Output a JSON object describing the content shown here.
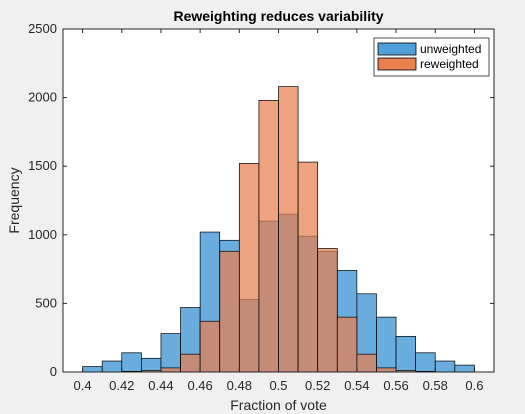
{
  "chart_data": {
    "type": "bar",
    "title": "Reweighting reduces variability",
    "xlabel": "Fraction of vote",
    "ylabel": "Frequency",
    "xlim": [
      0.39,
      0.61
    ],
    "ylim": [
      0,
      2500
    ],
    "xticks": [
      "0.4",
      "0.42",
      "0.44",
      "0.46",
      "0.48",
      "0.5",
      "0.52",
      "0.54",
      "0.56",
      "0.58",
      "0.6"
    ],
    "yticks": [
      "0",
      "500",
      "1000",
      "1500",
      "2000",
      "2500"
    ],
    "bin_width": 0.01,
    "grid": false,
    "legend_position": "top-right",
    "series": [
      {
        "name": "unweighted",
        "color": "#4f9fd8",
        "opacity": 0.85,
        "bins": [
          {
            "x": 0.4,
            "value": 40
          },
          {
            "x": 0.41,
            "value": 80
          },
          {
            "x": 0.42,
            "value": 140
          },
          {
            "x": 0.43,
            "value": 100
          },
          {
            "x": 0.44,
            "value": 280
          },
          {
            "x": 0.45,
            "value": 470
          },
          {
            "x": 0.46,
            "value": 1020
          },
          {
            "x": 0.47,
            "value": 960
          },
          {
            "x": 0.48,
            "value": 530
          },
          {
            "x": 0.49,
            "value": 1100
          },
          {
            "x": 0.5,
            "value": 1150
          },
          {
            "x": 0.51,
            "value": 990
          },
          {
            "x": 0.52,
            "value": 880
          },
          {
            "x": 0.53,
            "value": 740
          },
          {
            "x": 0.54,
            "value": 570
          },
          {
            "x": 0.55,
            "value": 400
          },
          {
            "x": 0.56,
            "value": 260
          },
          {
            "x": 0.57,
            "value": 140
          },
          {
            "x": 0.58,
            "value": 80
          },
          {
            "x": 0.59,
            "value": 50
          }
        ]
      },
      {
        "name": "reweighted",
        "color": "#e8804f",
        "opacity": 0.72,
        "bins": [
          {
            "x": 0.42,
            "value": 5
          },
          {
            "x": 0.43,
            "value": 10
          },
          {
            "x": 0.44,
            "value": 30
          },
          {
            "x": 0.45,
            "value": 130
          },
          {
            "x": 0.46,
            "value": 370
          },
          {
            "x": 0.47,
            "value": 880
          },
          {
            "x": 0.48,
            "value": 1520
          },
          {
            "x": 0.49,
            "value": 1980
          },
          {
            "x": 0.5,
            "value": 2080
          },
          {
            "x": 0.51,
            "value": 1530
          },
          {
            "x": 0.52,
            "value": 900
          },
          {
            "x": 0.53,
            "value": 400
          },
          {
            "x": 0.54,
            "value": 130
          },
          {
            "x": 0.55,
            "value": 30
          },
          {
            "x": 0.56,
            "value": 10
          },
          {
            "x": 0.57,
            "value": 5
          }
        ]
      }
    ]
  }
}
